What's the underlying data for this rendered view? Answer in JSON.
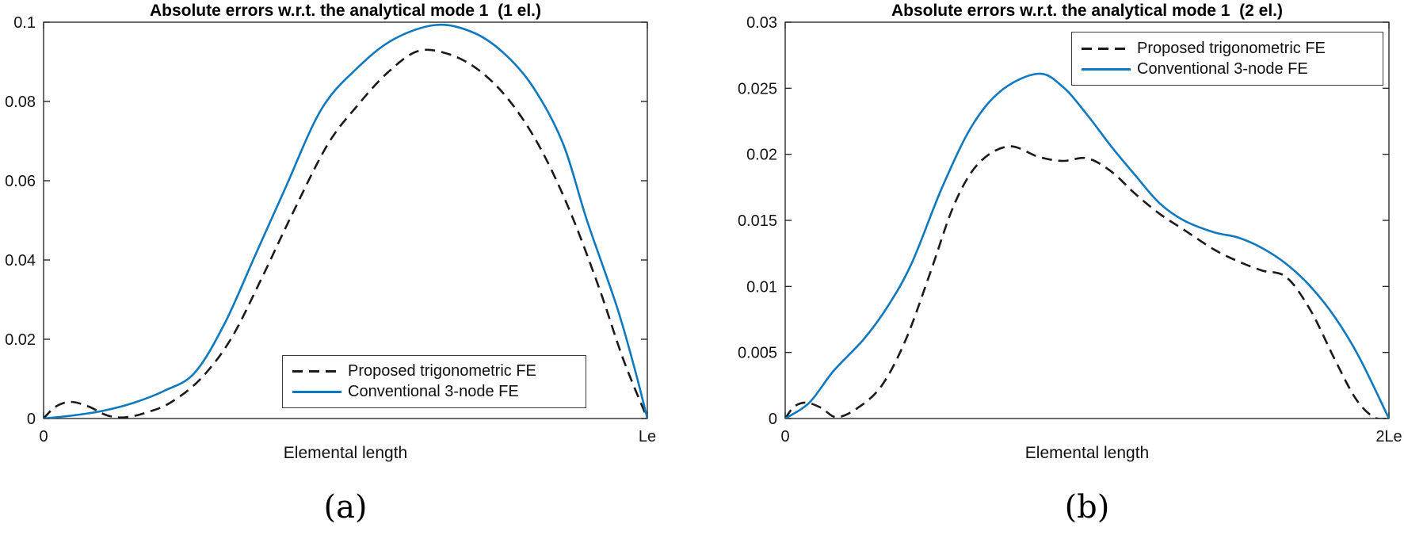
{
  "figure": {
    "captions": [
      "(a)",
      "(b)"
    ]
  },
  "colors": {
    "blue": "#0f79bf",
    "black": "#1a1a1a",
    "axis": "#2b2b2b"
  },
  "chart_data": [
    {
      "type": "line",
      "title": "Absolute errors w.r.t. the analytical mode 1  (1 el.)",
      "xlabel": "Elemental length",
      "ylabel": "",
      "xlim": [
        0,
        1
      ],
      "ylim": [
        0,
        0.1
      ],
      "grid": false,
      "legend_position": "inside-bottom-right",
      "xticks": [
        {
          "t": 0,
          "label": "0"
        },
        {
          "t": 1,
          "label": "Le"
        }
      ],
      "yticks": [
        {
          "v": 0,
          "label": "0"
        },
        {
          "v": 0.02,
          "label": "0.02"
        },
        {
          "v": 0.04,
          "label": "0.04"
        },
        {
          "v": 0.06,
          "label": "0.06"
        },
        {
          "v": 0.08,
          "label": "0.08"
        },
        {
          "v": 0.1,
          "label": "0.1"
        }
      ],
      "series": [
        {
          "name": "Proposed trigonometric FE",
          "style": "dashed",
          "color": "#1a1a1a",
          "x": [
            0,
            0.02,
            0.045,
            0.075,
            0.105,
            0.135,
            0.17,
            0.21,
            0.26,
            0.31,
            0.36,
            0.41,
            0.47,
            0.52,
            0.57,
            0.62,
            0.67,
            0.72,
            0.77,
            0.82,
            0.87,
            0.92,
            0.96,
            1
          ],
          "y": [
            0,
            0.003,
            0.0042,
            0.003,
            0.0008,
            0.0003,
            0.0015,
            0.004,
            0.01,
            0.02,
            0.035,
            0.051,
            0.069,
            0.079,
            0.0873,
            0.0927,
            0.092,
            0.088,
            0.0805,
            0.069,
            0.053,
            0.033,
            0.015,
            0
          ]
        },
        {
          "name": "Conventional 3-node FE",
          "style": "solid",
          "color": "#0f79bf",
          "x": [
            0,
            0.05,
            0.1,
            0.15,
            0.2,
            0.25,
            0.3,
            0.35,
            0.4,
            0.46,
            0.52,
            0.58,
            0.65,
            0.71,
            0.76,
            0.81,
            0.86,
            0.9,
            0.95,
            0.98,
            1
          ],
          "y": [
            0,
            0.0008,
            0.002,
            0.004,
            0.007,
            0.0115,
            0.024,
            0.041,
            0.058,
            0.078,
            0.0885,
            0.0957,
            0.0993,
            0.0975,
            0.0925,
            0.0838,
            0.0695,
            0.05,
            0.028,
            0.012,
            0
          ]
        }
      ]
    },
    {
      "type": "line",
      "title": "Absolute errors w.r.t. the analytical mode 1  (2 el.)",
      "xlabel": "Elemental length",
      "ylabel": "",
      "xlim": [
        0,
        1
      ],
      "ylim": [
        0,
        0.03
      ],
      "grid": false,
      "legend_position": "inside-top-right",
      "xticks": [
        {
          "t": 0,
          "label": "0"
        },
        {
          "t": 1,
          "label": "2Le"
        }
      ],
      "yticks": [
        {
          "v": 0,
          "label": "0"
        },
        {
          "v": 0.005,
          "label": "0.005"
        },
        {
          "v": 0.01,
          "label": "0.01"
        },
        {
          "v": 0.015,
          "label": "0.015"
        },
        {
          "v": 0.02,
          "label": "0.02"
        },
        {
          "v": 0.025,
          "label": "0.025"
        },
        {
          "v": 0.03,
          "label": "0.03"
        }
      ],
      "series": [
        {
          "name": "Proposed trigonometric FE",
          "style": "dashed",
          "color": "#1a1a1a",
          "x": [
            0,
            0.015,
            0.035,
            0.06,
            0.085,
            0.12,
            0.16,
            0.2,
            0.24,
            0.28,
            0.32,
            0.37,
            0.42,
            0.46,
            0.5,
            0.54,
            0.58,
            0.62,
            0.66,
            0.71,
            0.75,
            0.79,
            0.83,
            0.87,
            0.91,
            0.945,
            0.975,
            1
          ],
          "y": [
            0,
            0.0009,
            0.0012,
            0.0008,
            0.0001,
            0.0008,
            0.0025,
            0.006,
            0.011,
            0.0162,
            0.0193,
            0.0206,
            0.0198,
            0.0195,
            0.0197,
            0.0187,
            0.017,
            0.0155,
            0.0143,
            0.0128,
            0.0119,
            0.0112,
            0.0107,
            0.0082,
            0.0045,
            0.0015,
            0.0001,
            0
          ]
        },
        {
          "name": "Conventional 3-node FE",
          "style": "solid",
          "color": "#0f79bf",
          "x": [
            0,
            0.04,
            0.08,
            0.13,
            0.17,
            0.21,
            0.26,
            0.31,
            0.36,
            0.42,
            0.46,
            0.5,
            0.54,
            0.58,
            0.62,
            0.66,
            0.71,
            0.75,
            0.79,
            0.83,
            0.87,
            0.91,
            0.95,
            1
          ],
          "y": [
            0,
            0.0012,
            0.0036,
            0.006,
            0.0085,
            0.0118,
            0.0175,
            0.0222,
            0.0249,
            0.0261,
            0.0251,
            0.023,
            0.0206,
            0.0184,
            0.0163,
            0.015,
            0.0141,
            0.0137,
            0.0129,
            0.0117,
            0.01,
            0.0077,
            0.0047,
            0
          ]
        }
      ]
    }
  ]
}
